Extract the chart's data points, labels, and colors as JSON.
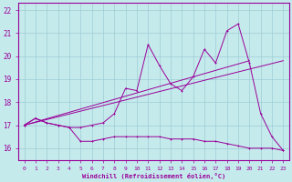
{
  "xlabel": "Windchill (Refroidissement éolien,°C)",
  "xlim": [
    -0.5,
    23.5
  ],
  "ylim": [
    15.5,
    22.3
  ],
  "xticks": [
    0,
    1,
    2,
    3,
    4,
    5,
    6,
    7,
    8,
    9,
    10,
    11,
    12,
    13,
    14,
    15,
    16,
    17,
    18,
    19,
    20,
    21,
    22,
    23
  ],
  "yticks": [
    16,
    17,
    18,
    19,
    20,
    21,
    22
  ],
  "bg_color": "#c5eaec",
  "grid_color": "#9dcdd4",
  "line_color": "#990099",
  "line1_x": [
    0,
    1,
    2,
    3,
    4,
    5,
    6,
    7,
    8,
    9,
    10,
    11,
    12,
    13,
    14,
    15,
    16,
    17,
    18,
    19,
    20,
    21,
    22,
    23
  ],
  "line1_y": [
    17.0,
    17.3,
    17.1,
    17.0,
    16.9,
    16.3,
    16.3,
    16.4,
    16.5,
    16.5,
    16.5,
    16.5,
    16.5,
    16.4,
    16.4,
    16.4,
    16.3,
    16.3,
    16.2,
    16.1,
    16.0,
    16.0,
    16.0,
    15.9
  ],
  "line2_x": [
    0,
    1,
    2,
    3,
    4,
    5,
    6,
    7,
    8,
    9,
    10,
    11,
    12,
    13,
    14,
    15,
    16,
    17,
    18,
    19,
    20,
    21,
    22,
    23
  ],
  "line2_y": [
    17.0,
    17.3,
    17.1,
    17.0,
    16.9,
    16.9,
    17.0,
    17.1,
    17.5,
    18.6,
    18.5,
    20.5,
    19.6,
    18.8,
    18.5,
    19.1,
    20.3,
    19.7,
    21.1,
    21.4,
    19.7,
    17.5,
    16.5,
    15.9
  ],
  "line3_x": [
    0,
    23
  ],
  "line3_y": [
    17.0,
    19.8
  ],
  "line4_x": [
    0,
    20
  ],
  "line4_y": [
    17.0,
    19.8
  ]
}
